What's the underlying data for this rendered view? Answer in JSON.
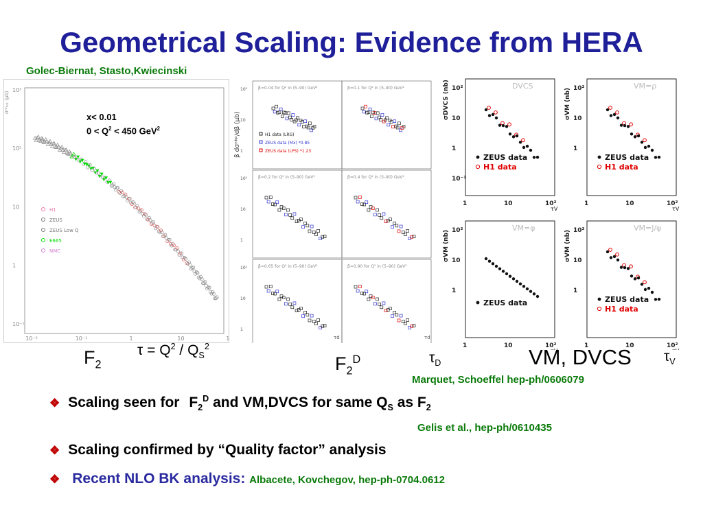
{
  "title": "Geometrical Scaling: Evidence from HERA",
  "authors_top": "Golec-Biernat, Stasto,Kwiecinski",
  "f2_plot": {
    "cond1": "x< 0.01",
    "cond2_a": "0 < Q",
    "cond2_b": " < 450 GeV",
    "legend": [
      "H1",
      "ZEUS",
      "ZEUS Low Q",
      "E665",
      "NMC"
    ],
    "legend_colors": [
      "#e87aa8",
      "#777777",
      "#777777",
      "#00dd00",
      "#d080d0"
    ],
    "xticks": [
      "10⁻²",
      "10⁻¹",
      "1",
      "10",
      "10²"
    ],
    "yticks": [
      "10³",
      "10²",
      "10",
      "1",
      "10⁻¹"
    ],
    "yaxis": "σʸᵖₜₒₜ (μb)"
  },
  "diff_plot": {
    "ylabel": "β dσᵞ*ᵖ/dβ (μb)",
    "titles": [
      "β=0.04 for Q² in (5–90) GeV²",
      "β=0.1 for Q² in (5–90) GeV²",
      "β=0.2 for Q² in (5–90) GeV²",
      "β=0.4 for Q² in (5–90) GeV²",
      "β=0.65 for Q² in (5–90) GeV²",
      "β=0.90 for Q² in (5–90) GeV²"
    ],
    "legend": [
      "H1 data (LRG)",
      "ZEUS data (Mx) *0.85",
      "ZEUS data (LPS) *1.23"
    ],
    "yticks": [
      "10²",
      "10",
      "1"
    ],
    "xticks": [
      "1",
      "10",
      "10²"
    ],
    "tau_d": "τd"
  },
  "vm_plots": [
    {
      "label": "DVCS",
      "ylabel": "σDVCS (nb)",
      "yticks": [
        "10²",
        "10",
        "1",
        "10⁻¹"
      ],
      "xticks": [
        "1",
        "10",
        "10²"
      ],
      "legend": [
        "ZEUS data",
        "H1 data"
      ]
    },
    {
      "label": "VM=ρ",
      "ylabel": "σVM (nb)",
      "yticks": [
        "10²",
        "10",
        "1"
      ],
      "xticks": [
        "1",
        "10",
        "10²"
      ],
      "legend": [
        "ZEUS data",
        "H1 data"
      ]
    },
    {
      "label": "VM=φ",
      "ylabel": "σVM (nb)",
      "yticks": [
        "10²",
        "10",
        "1"
      ],
      "xticks": [
        "1",
        "10",
        "10²"
      ],
      "legend": [
        "ZEUS data"
      ]
    },
    {
      "label": "VM=J/ψ",
      "ylabel": "σVM (nb)",
      "yticks": [
        "10²",
        "10",
        "1"
      ],
      "xticks": [
        "1",
        "10",
        "10²"
      ],
      "legend": [
        "ZEUS data",
        "H1 data"
      ]
    }
  ],
  "vm_tau_label": "τV",
  "labels": {
    "f2": "F",
    "f2_sub": "2",
    "tau_eq": "τ = Q",
    "tau_eq_mid": " / Q",
    "tau_eq_sub": "S",
    "tau_eq_sup": "2",
    "f2d": "F",
    "f2d_sub": "2",
    "f2d_sup": "D",
    "tau_d": "τ",
    "tau_d_sub": "D",
    "vm_dvcs": "VM, DVCS",
    "tau_v": "τ",
    "tau_v_sub": "V"
  },
  "ref_marquet": "Marquet, Schoeffel hep-ph/0606079",
  "bullet1": {
    "a": "Scaling seen for ",
    "b": "F",
    "b_sub": "2",
    "b_sup": "D",
    "c": " and VM,DVCS for same Q",
    "c_sub": "S",
    "d": " as F",
    "d_sub": "2"
  },
  "ref_gelis": "Gelis et al., hep-ph/0610435",
  "bullet2": "Scaling confirmed by “Quality factor” analysis",
  "bullet3": {
    "a": "Recent NLO BK analysis:",
    "b": "Albacete, Kovchegov, hep-ph-0704.0612"
  },
  "colors": {
    "title": "#1f1f9a",
    "green": "#0a7a0a",
    "bullet": "#c00000",
    "accent_blue": "#2a2aa0",
    "zeus_red": "#e00000"
  }
}
